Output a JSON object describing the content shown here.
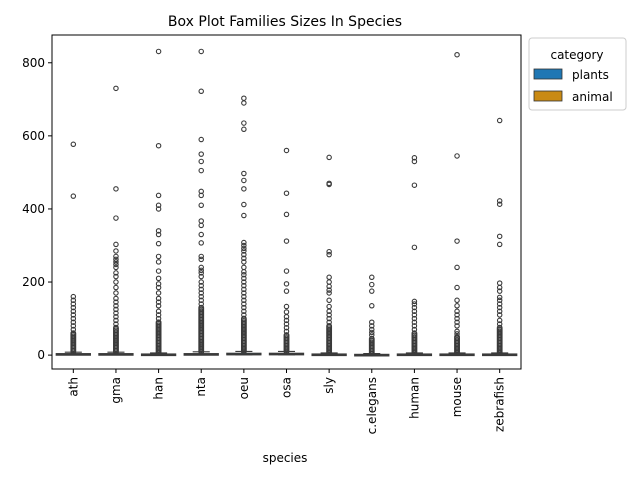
{
  "chart_data": {
    "type": "box",
    "title": "Box Plot Families Sizes In Species",
    "xlabel": "species",
    "ylabel": "",
    "ylim": [
      -38,
      876
    ],
    "yticks": [
      0,
      200,
      400,
      600,
      800
    ],
    "categories": [
      "ath",
      "gma",
      "han",
      "nta",
      "oeu",
      "osa",
      "sly",
      "c.elegans",
      "human",
      "mouse",
      "zebrafish"
    ],
    "category_group": [
      "plants",
      "plants",
      "plants",
      "plants",
      "plants",
      "plants",
      "plants",
      "animal",
      "animal",
      "animal",
      "animal"
    ],
    "legend": {
      "title": "category",
      "position": "top-right-outside",
      "entries": [
        {
          "name": "plants",
          "color": "#1f77b4"
        },
        {
          "name": "animal",
          "color": "#c98a14"
        }
      ]
    },
    "grid": false,
    "boxes": [
      {
        "q1": 1,
        "median": 2,
        "q3": 4,
        "whisker_low": 1,
        "whisker_high": 8,
        "dense_outlier_max": 60,
        "outliers": [
          70,
          80,
          90,
          100,
          110,
          120,
          130,
          140,
          150,
          160,
          435,
          577
        ]
      },
      {
        "q1": 1,
        "median": 2,
        "q3": 4,
        "whisker_low": 1,
        "whisker_high": 8,
        "dense_outlier_max": 75,
        "outliers": [
          85,
          95,
          105,
          115,
          125,
          135,
          145,
          155,
          170,
          185,
          200,
          215,
          225,
          240,
          248,
          255,
          262,
          270,
          285,
          303,
          375,
          455,
          730
        ]
      },
      {
        "q1": 1,
        "median": 1,
        "q3": 3,
        "whisker_low": 1,
        "whisker_high": 6,
        "dense_outlier_max": 90,
        "outliers": [
          100,
          110,
          120,
          135,
          145,
          155,
          170,
          185,
          195,
          210,
          230,
          255,
          270,
          305,
          330,
          340,
          400,
          410,
          437,
          573,
          831
        ]
      },
      {
        "q1": 1,
        "median": 2,
        "q3": 4,
        "whisker_low": 1,
        "whisker_high": 9,
        "dense_outlier_max": 130,
        "outliers": [
          140,
          150,
          160,
          170,
          180,
          190,
          200,
          215,
          225,
          232,
          240,
          262,
          270,
          307,
          330,
          355,
          367,
          410,
          437,
          448,
          505,
          530,
          550,
          590,
          722,
          831
        ]
      },
      {
        "q1": 1,
        "median": 2,
        "q3": 5,
        "whisker_low": 1,
        "whisker_high": 10,
        "dense_outlier_max": 100,
        "outliers": [
          110,
          120,
          130,
          140,
          150,
          160,
          170,
          180,
          190,
          200,
          210,
          220,
          228,
          240,
          255,
          265,
          275,
          285,
          292,
          300,
          308,
          382,
          412,
          455,
          478,
          497,
          618,
          635,
          690,
          703
        ]
      },
      {
        "q1": 2,
        "median": 3,
        "q3": 5,
        "whisker_low": 1,
        "whisker_high": 10,
        "dense_outlier_max": 55,
        "outliers": [
          65,
          75,
          85,
          95,
          105,
          118,
          133,
          175,
          195,
          230,
          312,
          385,
          443,
          560
        ]
      },
      {
        "q1": 1,
        "median": 1,
        "q3": 3,
        "whisker_low": 1,
        "whisker_high": 6,
        "dense_outlier_max": 80,
        "outliers": [
          90,
          100,
          110,
          120,
          133,
          150,
          170,
          178,
          188,
          200,
          213,
          275,
          283,
          467,
          470,
          541
        ]
      },
      {
        "q1": 1,
        "median": 1,
        "q3": 2,
        "whisker_low": 1,
        "whisker_high": 4,
        "dense_outlier_max": 45,
        "outliers": [
          55,
          62,
          70,
          80,
          90,
          135,
          175,
          193,
          213
        ]
      },
      {
        "q1": 1,
        "median": 1,
        "q3": 3,
        "whisker_low": 1,
        "whisker_high": 6,
        "dense_outlier_max": 60,
        "outliers": [
          70,
          80,
          90,
          100,
          110,
          120,
          130,
          140,
          147,
          295,
          465,
          530,
          540
        ]
      },
      {
        "q1": 1,
        "median": 1,
        "q3": 3,
        "whisker_low": 1,
        "whisker_high": 6,
        "dense_outlier_max": 50,
        "outliers": [
          58,
          65,
          80,
          90,
          100,
          110,
          120,
          135,
          150,
          185,
          240,
          312,
          545,
          822
        ]
      },
      {
        "q1": 1,
        "median": 1,
        "q3": 3,
        "whisker_low": 1,
        "whisker_high": 6,
        "dense_outlier_max": 75,
        "outliers": [
          85,
          95,
          110,
          120,
          130,
          140,
          150,
          158,
          175,
          185,
          197,
          303,
          325,
          413,
          422,
          642
        ]
      }
    ]
  }
}
